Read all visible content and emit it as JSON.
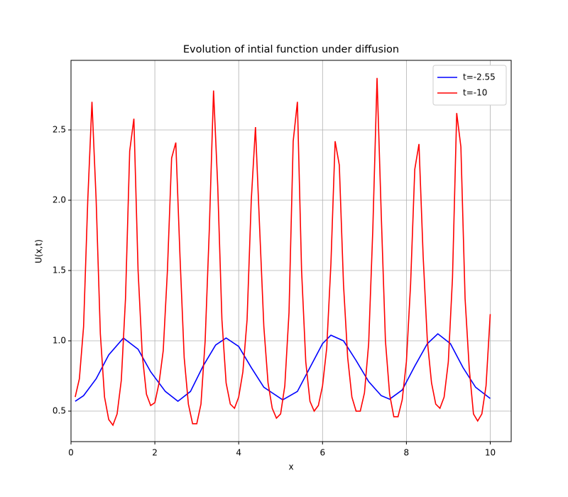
{
  "chart_data": {
    "type": "line",
    "title": "Evolution of intial function under diffusion",
    "xlabel": "x",
    "ylabel": "U(x,t)",
    "xlim": [
      0,
      10.5
    ],
    "ylim": [
      0.283,
      2.995
    ],
    "xticks": [
      0,
      2,
      4,
      6,
      8,
      10
    ],
    "yticks": [
      {
        "value": 0.5,
        "label": "0.5"
      },
      {
        "value": 1.0,
        "label": "1.0"
      },
      {
        "value": 1.5,
        "label": "1.5"
      },
      {
        "value": 2.0,
        "label": "2.0"
      },
      {
        "value": 2.5,
        "label": "2.5"
      }
    ],
    "grid": true,
    "legend": "upper right",
    "series": [
      {
        "name": "t=-2.55",
        "color": "#0000ff",
        "x": [
          0.1,
          0.3,
          0.6,
          0.9,
          1.25,
          1.6,
          1.9,
          2.25,
          2.55,
          2.85,
          3.15,
          3.45,
          3.7,
          4.0,
          4.3,
          4.6,
          5.05,
          5.4,
          5.7,
          6.0,
          6.2,
          6.5,
          6.8,
          7.1,
          7.4,
          7.6,
          7.9,
          8.2,
          8.5,
          8.75,
          9.05,
          9.35,
          9.65,
          10.0
        ],
        "values": [
          0.57,
          0.61,
          0.73,
          0.9,
          1.02,
          0.94,
          0.78,
          0.64,
          0.57,
          0.64,
          0.82,
          0.97,
          1.02,
          0.96,
          0.81,
          0.67,
          0.58,
          0.64,
          0.81,
          0.98,
          1.04,
          1.0,
          0.86,
          0.71,
          0.61,
          0.585,
          0.65,
          0.82,
          0.98,
          1.05,
          0.98,
          0.81,
          0.67,
          0.59
        ]
      },
      {
        "name": "t=-10",
        "color": "#ff0000",
        "x": [
          0.1,
          0.2,
          0.3,
          0.4,
          0.5,
          0.6,
          0.7,
          0.8,
          0.9,
          1.0,
          1.1,
          1.2,
          1.3,
          1.4,
          1.5,
          1.6,
          1.7,
          1.8,
          1.9,
          2.0,
          2.1,
          2.2,
          2.3,
          2.4,
          2.5,
          2.6,
          2.7,
          2.8,
          2.9,
          3.0,
          3.1,
          3.2,
          3.3,
          3.4,
          3.5,
          3.6,
          3.7,
          3.8,
          3.9,
          4.0,
          4.1,
          4.2,
          4.3,
          4.4,
          4.5,
          4.6,
          4.7,
          4.8,
          4.9,
          5.0,
          5.1,
          5.2,
          5.3,
          5.4,
          5.5,
          5.6,
          5.7,
          5.8,
          5.9,
          6.0,
          6.1,
          6.2,
          6.3,
          6.4,
          6.5,
          6.6,
          6.7,
          6.8,
          6.9,
          7.0,
          7.1,
          7.2,
          7.3,
          7.4,
          7.5,
          7.6,
          7.7,
          7.8,
          7.9,
          8.0,
          8.1,
          8.2,
          8.3,
          8.4,
          8.5,
          8.6,
          8.7,
          8.8,
          8.9,
          9.0,
          9.1,
          9.2,
          9.3,
          9.4,
          9.5,
          9.6,
          9.7,
          9.8,
          9.9,
          10.0
        ],
        "values": [
          0.6,
          0.73,
          1.1,
          2.0,
          2.7,
          2.0,
          1.05,
          0.6,
          0.44,
          0.4,
          0.48,
          0.72,
          1.3,
          2.35,
          2.58,
          1.5,
          0.9,
          0.62,
          0.54,
          0.56,
          0.7,
          0.93,
          1.5,
          2.3,
          2.41,
          1.6,
          0.88,
          0.55,
          0.41,
          0.41,
          0.55,
          1.0,
          1.8,
          2.78,
          2.1,
          1.15,
          0.7,
          0.55,
          0.52,
          0.6,
          0.78,
          1.15,
          2.0,
          2.52,
          1.8,
          1.1,
          0.7,
          0.52,
          0.45,
          0.48,
          0.68,
          1.2,
          2.42,
          2.7,
          1.5,
          0.85,
          0.57,
          0.5,
          0.54,
          0.68,
          0.95,
          1.55,
          2.42,
          2.25,
          1.4,
          0.88,
          0.6,
          0.5,
          0.5,
          0.63,
          0.98,
          1.8,
          2.87,
          1.9,
          1.0,
          0.62,
          0.46,
          0.46,
          0.58,
          0.85,
          1.4,
          2.22,
          2.4,
          1.6,
          1.0,
          0.7,
          0.55,
          0.52,
          0.6,
          0.85,
          1.45,
          2.62,
          2.38,
          1.3,
          0.8,
          0.48,
          0.43,
          0.48,
          0.68,
          1.19
        ]
      }
    ]
  }
}
